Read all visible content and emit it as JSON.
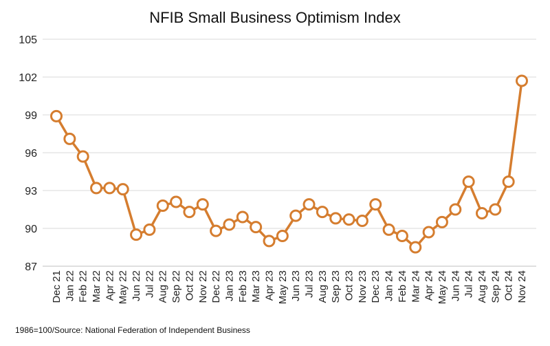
{
  "chart_data": {
    "type": "line",
    "title": "NFIB Small Business Optimism Index",
    "xlabel": "",
    "ylabel": "",
    "ylim": [
      87,
      105
    ],
    "yticks": [
      87,
      90,
      93,
      96,
      99,
      102,
      105
    ],
    "grid": true,
    "categories": [
      "Dec 21",
      "Jan 22",
      "Feb 22",
      "Mar 22",
      "Apr 22",
      "May 22",
      "Jun 22",
      "Jul 22",
      "Aug 22",
      "Sep 22",
      "Oct 22",
      "Nov 22",
      "Dec 22",
      "Jan 23",
      "Feb 23",
      "Mar 23",
      "Apr 23",
      "May 23",
      "Jun 23",
      "Jul 23",
      "Aug 23",
      "Sep 23",
      "Oct 23",
      "Nov 23",
      "Dec 23",
      "Jan 24",
      "Feb 24",
      "Mar 24",
      "Apr 24",
      "May 24",
      "Jun 24",
      "Jul 24",
      "Aug 24",
      "Sep 24",
      "Oct 24",
      "Nov 24"
    ],
    "series": [
      {
        "name": "NFIB Small Business Optimism Index",
        "color": "#D57D2F",
        "values": [
          98.9,
          97.1,
          95.7,
          93.2,
          93.2,
          93.1,
          89.5,
          89.9,
          91.8,
          92.1,
          91.3,
          91.9,
          89.8,
          90.3,
          90.9,
          90.1,
          89.0,
          89.4,
          91.0,
          91.9,
          91.3,
          90.8,
          90.7,
          90.6,
          91.9,
          89.9,
          89.4,
          88.5,
          89.7,
          90.5,
          91.5,
          93.7,
          91.2,
          91.5,
          93.7,
          101.7
        ]
      }
    ],
    "source": "1986=100/Source: National Federation of Independent Business"
  }
}
